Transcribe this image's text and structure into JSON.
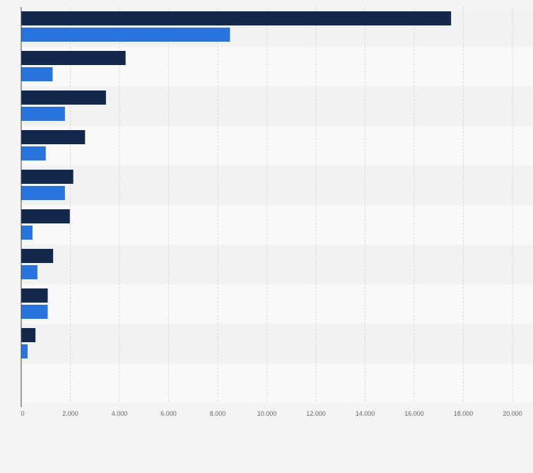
{
  "chart_data": {
    "type": "bar",
    "orientation": "horizontal",
    "categories": [
      "",
      "",
      "",
      "",
      "",
      "",
      "",
      "",
      "",
      ""
    ],
    "series": [
      {
        "values": [
          17500,
          4250,
          3450,
          2600,
          2120,
          1980,
          1300,
          1080,
          580,
          null
        ]
      },
      {
        "values": [
          8500,
          1280,
          1780,
          1000,
          1780,
          460,
          660,
          1080,
          260,
          null
        ]
      }
    ],
    "xlim": [
      0,
      20000
    ],
    "ticks": [
      0,
      2000,
      4000,
      6000,
      8000,
      10000,
      12000,
      14000,
      16000,
      18000,
      20000
    ],
    "tick_labels": [
      "0",
      "2.000",
      "4.000",
      "6.000",
      "8.000",
      "10.000",
      "12.000",
      "14.000",
      "16.000",
      "18.000",
      "20.000"
    ],
    "grid": true,
    "legend": "none"
  },
  "colors": {
    "background": "#f4f4f4",
    "band_light": "#f9f9f9",
    "band_dark": "#f2f2f2",
    "series_1": "#14294a",
    "series_2": "#2876dd",
    "grid": "#d9d9d9",
    "axis": "#444444"
  }
}
